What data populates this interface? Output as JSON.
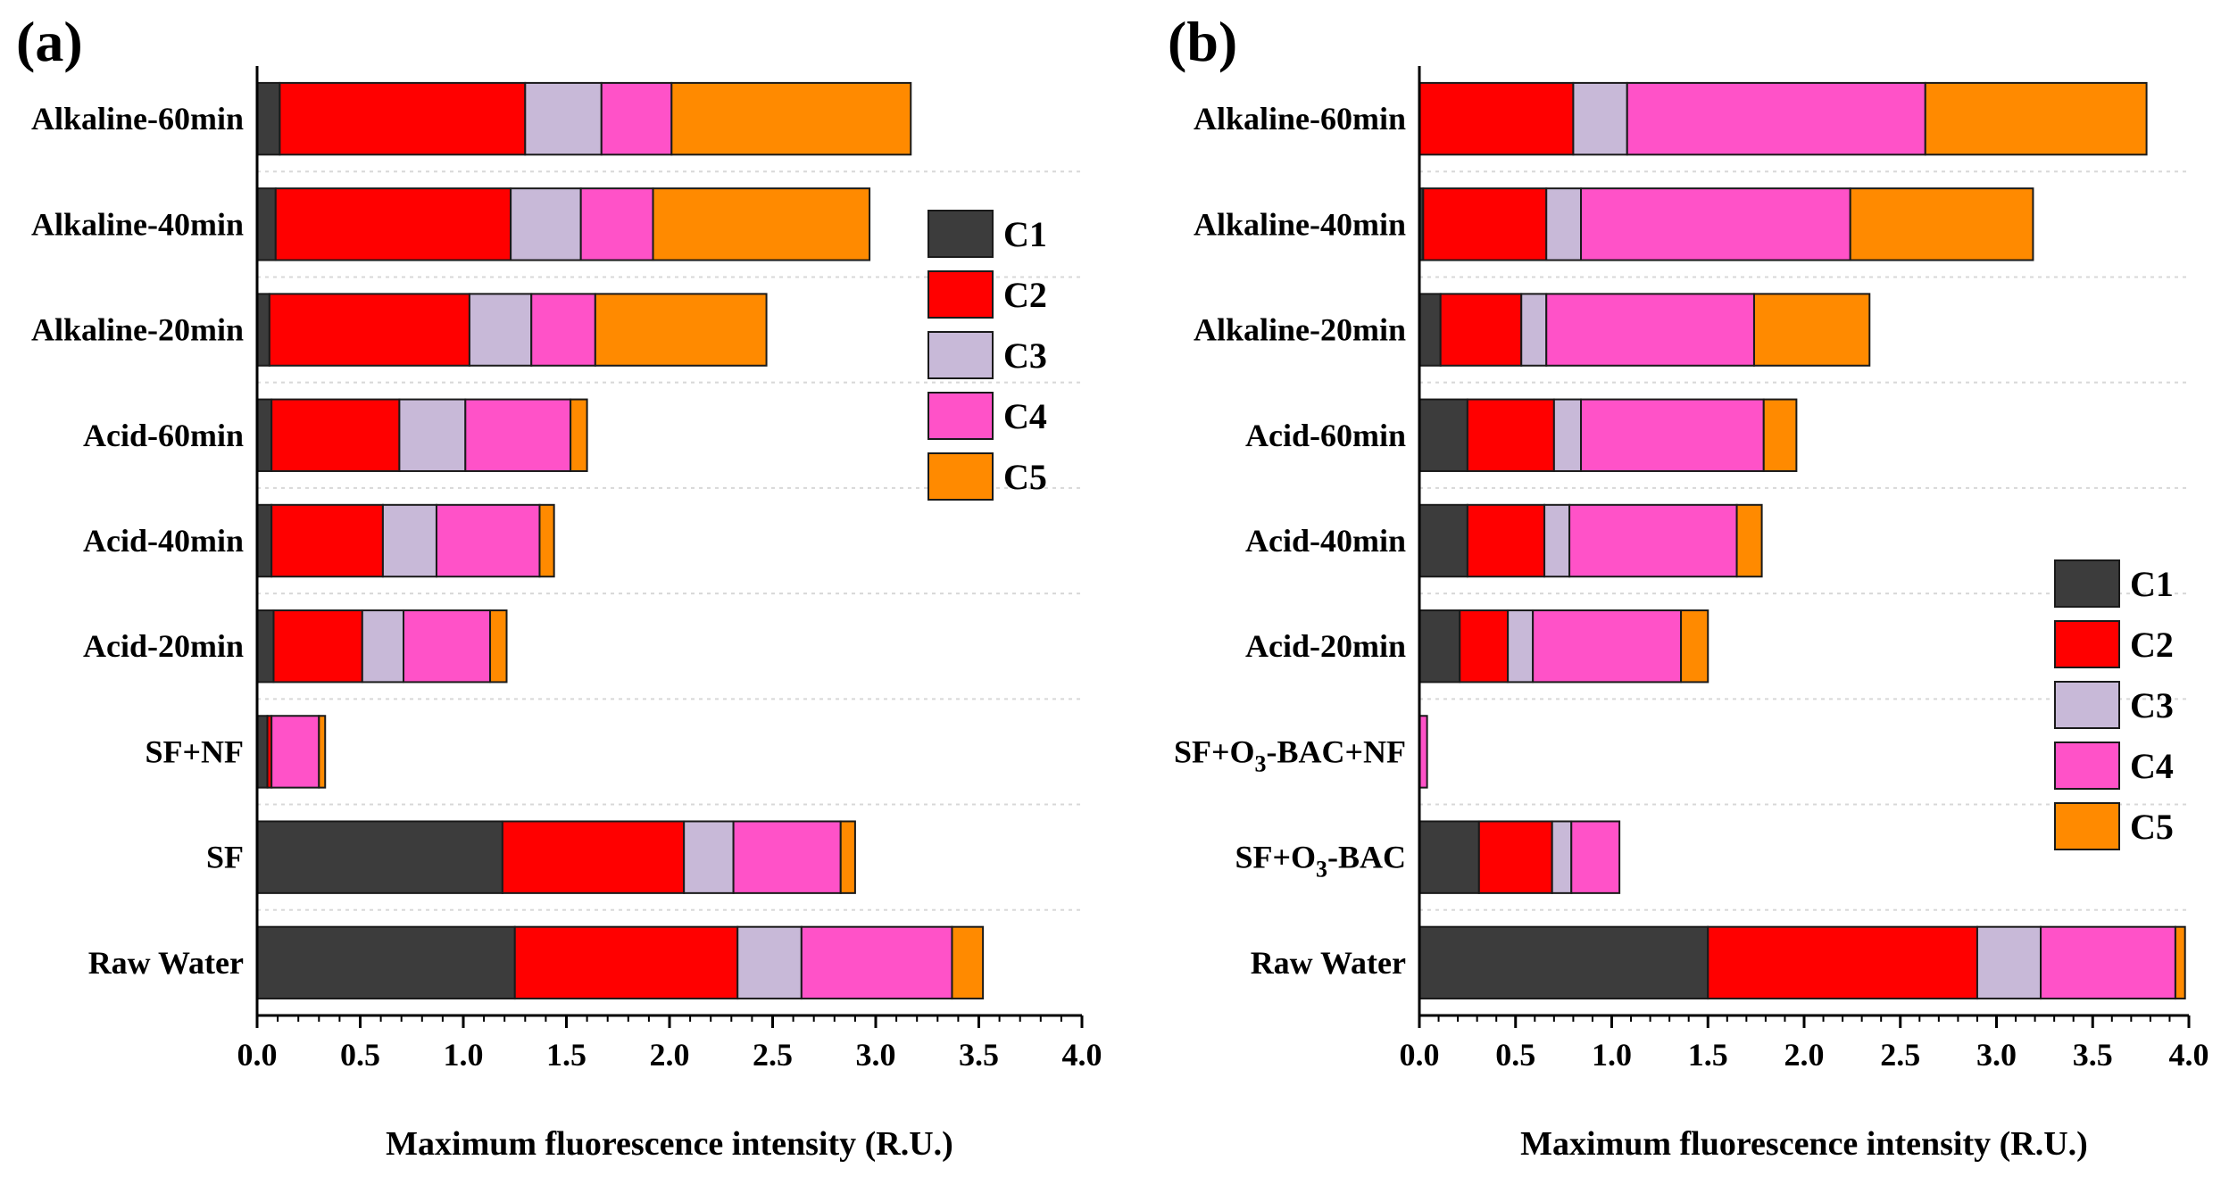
{
  "chart_data": [
    {
      "type": "bar",
      "orientation": "horizontal",
      "stacked": true,
      "panel_label": "(a)",
      "xlabel": "Maximum fluorescence intensity (R.U.)",
      "ylabel": "",
      "xlim": [
        0,
        4.0
      ],
      "xticks": [
        "0.0",
        "0.5",
        "1.0",
        "1.5",
        "2.0",
        "2.5",
        "3.0",
        "3.5",
        "4.0"
      ],
      "grid": true,
      "legend_position": "right-upper",
      "categories": [
        "Alkaline-60min",
        "Alkaline-40min",
        "Alkaline-20min",
        "Acid-60min",
        "Acid-40min",
        "Acid-20min",
        "SF+NF",
        "SF",
        "Raw Water"
      ],
      "series": [
        {
          "name": "C1",
          "color": "#3c3c3c",
          "values": [
            0.11,
            0.09,
            0.06,
            0.07,
            0.07,
            0.08,
            0.05,
            1.19,
            1.25
          ]
        },
        {
          "name": "C2",
          "color": "#ff0000",
          "values": [
            1.19,
            1.14,
            0.97,
            0.62,
            0.54,
            0.43,
            0.02,
            0.88,
            1.08
          ]
        },
        {
          "name": "C3",
          "color": "#c8b9d8",
          "values": [
            0.37,
            0.34,
            0.3,
            0.32,
            0.26,
            0.2,
            0.0,
            0.24,
            0.31
          ]
        },
        {
          "name": "C4",
          "color": "#ff52c8",
          "values": [
            0.34,
            0.35,
            0.31,
            0.51,
            0.5,
            0.42,
            0.23,
            0.52,
            0.73
          ]
        },
        {
          "name": "C5",
          "color": "#ff8a00",
          "values": [
            1.16,
            1.05,
            0.83,
            0.08,
            0.07,
            0.08,
            0.03,
            0.07,
            0.15
          ]
        }
      ]
    },
    {
      "type": "bar",
      "orientation": "horizontal",
      "stacked": true,
      "panel_label": "(b)",
      "xlabel": "Maximum fluorescence intensity (R.U.)",
      "ylabel": "",
      "xlim": [
        0,
        4.0
      ],
      "xticks": [
        "0.0",
        "0.5",
        "1.0",
        "1.5",
        "2.0",
        "2.5",
        "3.0",
        "3.5",
        "4.0"
      ],
      "grid": true,
      "legend_position": "right-lower",
      "categories": [
        {
          "main": "Alkaline-60min"
        },
        {
          "main": "Alkaline-40min"
        },
        {
          "main": "Alkaline-20min"
        },
        {
          "main": "Acid-60min"
        },
        {
          "main": "Acid-40min"
        },
        {
          "main": "Acid-20min"
        },
        {
          "main": "SF+O",
          "sub": "3",
          "rest": "-BAC+NF"
        },
        {
          "main": "SF+O",
          "sub": "3",
          "rest": "-BAC"
        },
        {
          "main": "Raw Water"
        }
      ],
      "series": [
        {
          "name": "C1",
          "color": "#3c3c3c",
          "values": [
            0.0,
            0.02,
            0.11,
            0.25,
            0.25,
            0.21,
            0.0,
            0.31,
            1.5
          ]
        },
        {
          "name": "C2",
          "color": "#ff0000",
          "values": [
            0.8,
            0.64,
            0.42,
            0.45,
            0.4,
            0.25,
            0.0,
            0.38,
            1.4
          ]
        },
        {
          "name": "C3",
          "color": "#c8b9d8",
          "values": [
            0.28,
            0.18,
            0.13,
            0.14,
            0.13,
            0.13,
            0.0,
            0.1,
            0.33
          ]
        },
        {
          "name": "C4",
          "color": "#ff52c8",
          "values": [
            1.55,
            1.4,
            1.08,
            0.95,
            0.87,
            0.77,
            0.04,
            0.25,
            0.7
          ]
        },
        {
          "name": "C5",
          "color": "#ff8a00",
          "values": [
            1.15,
            0.95,
            0.6,
            0.17,
            0.13,
            0.14,
            0.0,
            0.0,
            0.05
          ]
        }
      ]
    }
  ]
}
